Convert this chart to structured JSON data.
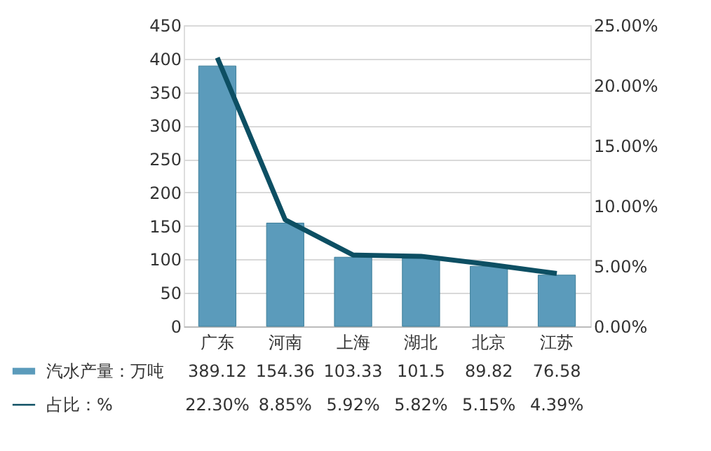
{
  "chart_data": {
    "type": "bar",
    "categories": [
      "广东",
      "河南",
      "上海",
      "湖北",
      "北京",
      "江苏"
    ],
    "series": [
      {
        "name": "汽水产量：万吨",
        "color": "#5b9bbb",
        "values": [
          389.12,
          154.36,
          103.33,
          101.5,
          89.82,
          76.58
        ],
        "value_labels": [
          "389.12",
          "154.36",
          "103.33",
          "101.5",
          "89.82",
          "76.58"
        ]
      },
      {
        "name": "占比：%",
        "type": "line",
        "axis": "y2",
        "color": "#0d4f63",
        "values": [
          22.3,
          8.85,
          5.92,
          5.82,
          5.15,
          4.39
        ],
        "value_labels": [
          "22.30%",
          "8.85%",
          "5.92%",
          "5.82%",
          "5.15%",
          "4.39%"
        ]
      }
    ],
    "ylim": [
      0,
      450
    ],
    "yticks": [
      0,
      50,
      100,
      150,
      200,
      250,
      300,
      350,
      400,
      450
    ],
    "y2lim": [
      0,
      25
    ],
    "y2ticks": [
      {
        "value": 0,
        "label": "0.00%"
      },
      {
        "value": 5,
        "label": "5.00%"
      },
      {
        "value": 10,
        "label": "10.00%"
      },
      {
        "value": 15,
        "label": "15.00%"
      },
      {
        "value": 20,
        "label": "20.00%"
      },
      {
        "value": 25,
        "label": "25.00%"
      }
    ],
    "grid": "y",
    "legend": "bottom",
    "line_style": "solid",
    "marker": "none"
  }
}
